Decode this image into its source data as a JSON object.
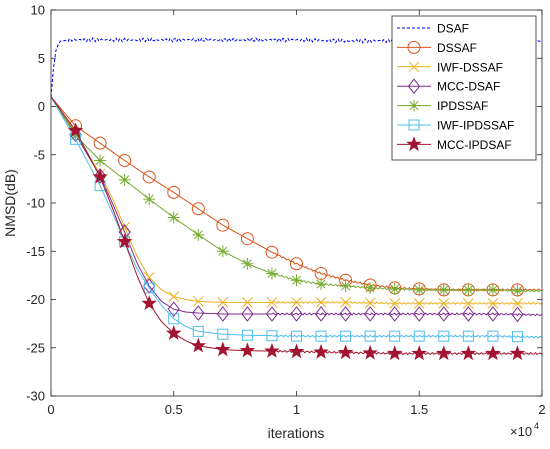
{
  "chart_data": {
    "type": "line",
    "xlabel": "iterations",
    "ylabel": "NMSD(dB)",
    "x_multiplier_label": "×10",
    "x_multiplier_exp": "4",
    "xlim": [
      0,
      2
    ],
    "ylim": [
      -30,
      10
    ],
    "xticks": [
      0,
      0.5,
      1,
      1.5,
      2
    ],
    "xtick_labels": [
      "0",
      "0.5",
      "1",
      "1.5",
      "2"
    ],
    "yticks": [
      -30,
      -25,
      -20,
      -15,
      -10,
      -5,
      0,
      5,
      10
    ],
    "ytick_labels": [
      "-30",
      "-25",
      "-20",
      "-15",
      "-10",
      "-5",
      "0",
      "5",
      "10"
    ],
    "grid": false,
    "legend_position": "top-right",
    "series": [
      {
        "name": "DSAF",
        "color": "#0000ff",
        "line_style": "dashed",
        "marker": "none",
        "x": [
          0,
          0.01,
          0.02,
          0.03,
          0.04,
          0.05,
          0.07,
          0.1,
          0.2,
          0.4,
          0.6,
          0.8,
          1.0,
          1.2,
          1.4,
          1.6,
          1.8,
          2.0
        ],
        "y": [
          1.0,
          4.0,
          5.8,
          6.5,
          6.8,
          6.8,
          6.9,
          6.9,
          6.9,
          6.9,
          6.9,
          6.9,
          6.9,
          6.8,
          6.8,
          6.8,
          6.8,
          6.8
        ]
      },
      {
        "name": "DSSAF",
        "color": "#d95319",
        "line_style": "solid",
        "marker": "circle",
        "x": [
          0,
          0.1,
          0.2,
          0.3,
          0.4,
          0.5,
          0.6,
          0.7,
          0.8,
          0.9,
          1.0,
          1.1,
          1.2,
          1.3,
          1.4,
          1.5,
          1.6,
          1.7,
          1.8,
          1.9,
          2.0
        ],
        "y": [
          1.0,
          -2.0,
          -3.8,
          -5.6,
          -7.3,
          -8.9,
          -10.6,
          -12.3,
          -13.7,
          -15.1,
          -16.3,
          -17.3,
          -18.0,
          -18.5,
          -18.8,
          -18.9,
          -19.0,
          -19.0,
          -19.0,
          -19.0,
          -19.0
        ],
        "marker_x": [
          0.1,
          0.2,
          0.3,
          0.4,
          0.5,
          0.6,
          0.7,
          0.8,
          0.9,
          1.0,
          1.1,
          1.2,
          1.3,
          1.4,
          1.5,
          1.6,
          1.7,
          1.8,
          1.9
        ]
      },
      {
        "name": "IWF-DSSAF",
        "color": "#edb120",
        "line_style": "solid",
        "marker": "x",
        "x": [
          0,
          0.1,
          0.2,
          0.25,
          0.3,
          0.35,
          0.4,
          0.45,
          0.5,
          0.55,
          0.6,
          0.7,
          0.8,
          1.0,
          1.2,
          1.4,
          1.6,
          1.8,
          2.0
        ],
        "y": [
          1.0,
          -2.7,
          -7.0,
          -9.5,
          -12.5,
          -15.5,
          -17.7,
          -19.0,
          -19.7,
          -20.0,
          -20.2,
          -20.3,
          -20.3,
          -20.3,
          -20.3,
          -20.4,
          -20.4,
          -20.4,
          -20.4
        ],
        "marker_x": [
          0.1,
          0.2,
          0.3,
          0.4,
          0.5,
          0.6,
          0.7,
          0.8,
          0.9,
          1.0,
          1.1,
          1.2,
          1.3,
          1.4,
          1.5,
          1.6,
          1.7,
          1.8,
          1.9
        ]
      },
      {
        "name": "MCC-DSAF",
        "color": "#7e2f8e",
        "line_style": "solid",
        "marker": "diamond",
        "x": [
          0,
          0.1,
          0.2,
          0.25,
          0.3,
          0.35,
          0.4,
          0.45,
          0.5,
          0.55,
          0.6,
          0.7,
          0.8,
          1.0,
          1.2,
          1.4,
          1.6,
          1.8,
          2.0
        ],
        "y": [
          1.0,
          -2.9,
          -7.2,
          -10.0,
          -13.0,
          -16.2,
          -18.6,
          -20.2,
          -21.0,
          -21.3,
          -21.4,
          -21.5,
          -21.5,
          -21.5,
          -21.5,
          -21.5,
          -21.5,
          -21.5,
          -21.6
        ],
        "marker_x": [
          0.1,
          0.2,
          0.3,
          0.4,
          0.5,
          0.6,
          0.7,
          0.8,
          0.9,
          1.0,
          1.1,
          1.2,
          1.3,
          1.4,
          1.5,
          1.6,
          1.7,
          1.8,
          1.9
        ]
      },
      {
        "name": "IPDSSAF",
        "color": "#77ac30",
        "line_style": "solid",
        "marker": "asterisk",
        "x": [
          0,
          0.1,
          0.2,
          0.3,
          0.4,
          0.5,
          0.6,
          0.7,
          0.8,
          0.9,
          1.0,
          1.1,
          1.2,
          1.3,
          1.4,
          1.5,
          1.6,
          1.7,
          1.8,
          1.9,
          2.0
        ],
        "y": [
          1.0,
          -3.0,
          -5.6,
          -7.6,
          -9.6,
          -11.5,
          -13.3,
          -15.0,
          -16.3,
          -17.3,
          -18.0,
          -18.4,
          -18.6,
          -18.8,
          -18.9,
          -19.0,
          -19.0,
          -19.0,
          -19.0,
          -19.1,
          -19.1
        ],
        "marker_x": [
          0.1,
          0.2,
          0.3,
          0.4,
          0.5,
          0.6,
          0.7,
          0.8,
          0.9,
          1.0,
          1.1,
          1.2,
          1.3,
          1.4,
          1.5,
          1.6,
          1.7,
          1.8,
          1.9
        ]
      },
      {
        "name": "IWF-IPDSSAF",
        "color": "#4dbeee",
        "line_style": "solid",
        "marker": "square",
        "x": [
          0,
          0.1,
          0.2,
          0.25,
          0.3,
          0.35,
          0.4,
          0.45,
          0.5,
          0.55,
          0.6,
          0.7,
          0.8,
          1.0,
          1.2,
          1.4,
          1.6,
          1.8,
          2.0
        ],
        "y": [
          1.0,
          -3.4,
          -8.2,
          -11.0,
          -14.0,
          -16.8,
          -18.8,
          -20.6,
          -22.0,
          -22.8,
          -23.3,
          -23.6,
          -23.7,
          -23.8,
          -23.8,
          -23.8,
          -23.8,
          -23.8,
          -23.9
        ],
        "marker_x": [
          0.1,
          0.2,
          0.3,
          0.4,
          0.5,
          0.6,
          0.7,
          0.8,
          0.9,
          1.0,
          1.1,
          1.2,
          1.3,
          1.4,
          1.5,
          1.6,
          1.7,
          1.8,
          1.9
        ]
      },
      {
        "name": "MCC-IPDSAF",
        "color": "#a2142f",
        "line_style": "solid",
        "marker": "star",
        "x": [
          0,
          0.1,
          0.2,
          0.25,
          0.3,
          0.35,
          0.4,
          0.45,
          0.5,
          0.55,
          0.6,
          0.7,
          0.8,
          1.0,
          1.2,
          1.4,
          1.6,
          1.8,
          2.0
        ],
        "y": [
          1.0,
          -2.5,
          -7.3,
          -10.5,
          -14.0,
          -17.5,
          -20.4,
          -22.3,
          -23.5,
          -24.3,
          -24.8,
          -25.2,
          -25.3,
          -25.4,
          -25.5,
          -25.6,
          -25.6,
          -25.6,
          -25.6
        ],
        "marker_x": [
          0.1,
          0.2,
          0.3,
          0.4,
          0.5,
          0.6,
          0.7,
          0.8,
          0.9,
          1.0,
          1.1,
          1.2,
          1.3,
          1.4,
          1.5,
          1.6,
          1.7,
          1.8,
          1.9
        ]
      }
    ]
  }
}
